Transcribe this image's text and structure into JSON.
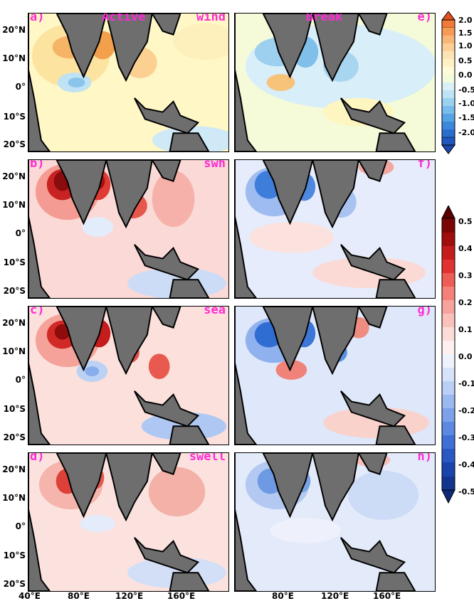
{
  "panels": [
    {
      "id": "a",
      "letter": "a)",
      "left_title": "Active",
      "right_title": "wind"
    },
    {
      "id": "e",
      "letter": "e)",
      "center_title": "Break"
    },
    {
      "id": "b",
      "letter": "b)",
      "right_title": "swh"
    },
    {
      "id": "f",
      "letter": "f)"
    },
    {
      "id": "c",
      "letter": "c)",
      "right_title": "sea"
    },
    {
      "id": "g",
      "letter": "g)"
    },
    {
      "id": "d",
      "letter": "d)",
      "right_title": "swell"
    },
    {
      "id": "h",
      "letter": "h)"
    }
  ],
  "y_ticks": [
    "20°N",
    "10°N",
    "0°",
    "10°S",
    "20°S"
  ],
  "x_ticks": [
    "40°E",
    "80°E",
    "120°E",
    "160°E"
  ],
  "colorbar_wind": [
    "2.0",
    "1.5",
    "1.0",
    "0.5",
    "0.0",
    "-0.5",
    "-1.0",
    "-1.5",
    "-2.0"
  ],
  "colorbar_wave": [
    "0.5",
    "0.4",
    "0.3",
    "0.2",
    "0.1",
    "0.0",
    "-0.1",
    "-0.2",
    "-0.3",
    "-0.4",
    "-0.5"
  ],
  "colors": {
    "label": "#ff2bd6",
    "land": "#6e6e6e"
  }
}
